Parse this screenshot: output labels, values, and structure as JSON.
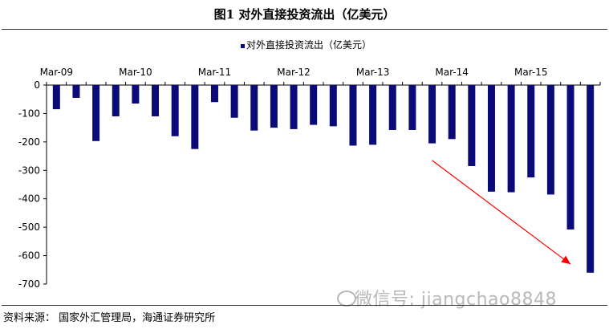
{
  "figure_title": "图1  对外直接投资流出（亿美元）",
  "source": "资料来源： 国家外汇管理局，海通证券研究所",
  "watermark": "微信号: jiangchao8848",
  "chart_data": {
    "type": "bar",
    "title": "",
    "xlabel": "",
    "ylabel": "",
    "legend": {
      "label": "对外直接投资流出（亿美元）",
      "position": "top"
    },
    "series": [
      {
        "name": "对外直接投资流出（亿美元）",
        "color": "#0a0a78",
        "values": [
          -85,
          -45,
          -197,
          -110,
          -65,
          -110,
          -180,
          -225,
          -60,
          -115,
          -160,
          -150,
          -155,
          -140,
          -145,
          -213,
          -210,
          -158,
          -158,
          -205,
          -190,
          -285,
          -375,
          -377,
          -325,
          -385,
          -508,
          -660
        ]
      }
    ],
    "x_tick_labels": [
      {
        "index": 0,
        "label": "Mar-09"
      },
      {
        "index": 4,
        "label": "Mar-10"
      },
      {
        "index": 8,
        "label": "Mar-11"
      },
      {
        "index": 12,
        "label": "Mar-12"
      },
      {
        "index": 16,
        "label": "Mar-13"
      },
      {
        "index": 20,
        "label": "Mar-14"
      },
      {
        "index": 24,
        "label": "Mar-15"
      }
    ],
    "ylim": [
      -700,
      0
    ],
    "y_ticks": [
      0,
      -100,
      -200,
      -300,
      -400,
      -500,
      -600,
      -700
    ],
    "grid": false,
    "annotation": {
      "type": "arrow",
      "color": "#ff0000",
      "from_index": 19,
      "from_value": -265,
      "to_index": 26,
      "to_value": -630
    }
  }
}
